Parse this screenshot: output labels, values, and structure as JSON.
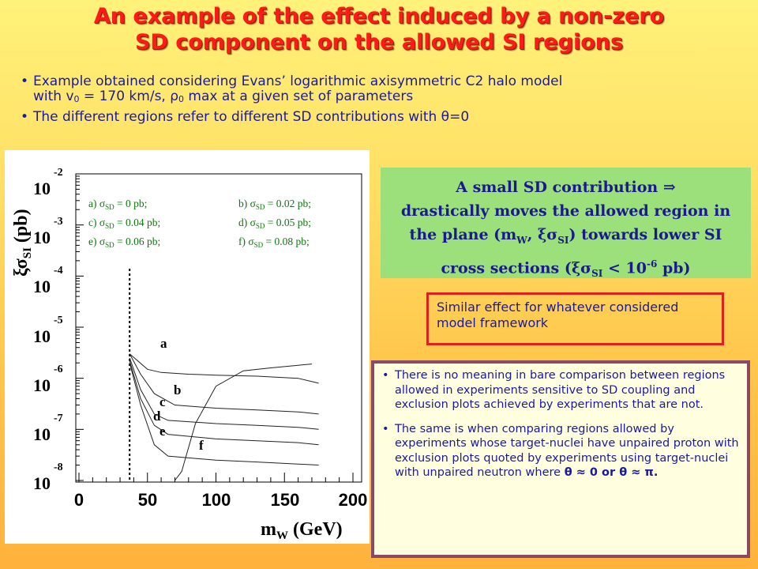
{
  "title": {
    "line1": "An example of the effect induced by a non-zero",
    "line2": "SD component on the allowed SI regions"
  },
  "bullets": {
    "b1_part1": "Example obtained considering Evans’ logarithmic axisymmetric C2 halo model",
    "b1_part2": "with v",
    "b1_sub": "0",
    "b1_part3": " = 170 km/s, ρ",
    "b1_sub2": "0",
    "b1_part4": " max at a given set of parameters",
    "b2": "The different regions refer to different SD contributions with θ=0"
  },
  "figure": {
    "ylabel": "ξσ",
    "ylabel_sub": "SI",
    "ylabel_unit": " (pb)",
    "xlabel": "m",
    "xlabel_sub": "W",
    "xlabel_unit": " (GeV)",
    "y_ticks": [
      {
        "base": "10",
        "exp": "-2"
      },
      {
        "base": "10",
        "exp": "-3"
      },
      {
        "base": "10",
        "exp": "-4"
      },
      {
        "base": "10",
        "exp": "-5"
      },
      {
        "base": "10",
        "exp": "-6"
      },
      {
        "base": "10",
        "exp": "-7"
      },
      {
        "base": "10",
        "exp": "-8"
      }
    ],
    "x_ticks": [
      "0",
      "50",
      "100",
      "150",
      "200"
    ],
    "legend": [
      {
        "pre": "a) σ",
        "sub": "SD",
        "post": " = 0 pb;"
      },
      {
        "pre": "b) σ",
        "sub": "SD",
        "post": " = 0.02 pb;"
      },
      {
        "pre": "c) σ",
        "sub": "SD",
        "post": " = 0.04 pb;"
      },
      {
        "pre": "d) σ",
        "sub": "SD",
        "post": " = 0.05 pb;"
      },
      {
        "pre": "e) σ",
        "sub": "SD",
        "post": " = 0.06 pb;"
      },
      {
        "pre": "f)  σ",
        "sub": "SD",
        "post": " = 0.08 pb;"
      }
    ],
    "curve_labels": [
      "a",
      "b",
      "c",
      "d",
      "e",
      "f"
    ]
  },
  "chart_data": {
    "type": "line",
    "x_axis": {
      "range": [
        0,
        200
      ],
      "scale": "linear"
    },
    "y_axis": {
      "range": [
        1e-08,
        0.01
      ],
      "scale": "log"
    },
    "cut_line_x": 37,
    "series": [
      {
        "name": "a",
        "x": [
          37,
          50,
          60,
          80,
          100,
          130,
          160,
          175
        ],
        "y": [
          3e-06,
          1.5e-06,
          1.3e-06,
          1.2e-06,
          1.15e-06,
          1.1e-06,
          1e-06,
          8e-07
        ]
      },
      {
        "name": "b",
        "x": [
          37,
          45,
          55,
          70,
          100,
          130,
          160,
          175
        ],
        "y": [
          3e-06,
          1.2e-06,
          5e-07,
          3e-07,
          2.6e-07,
          2.4e-07,
          2.2e-07,
          2e-07
        ]
      },
      {
        "name": "c",
        "x": [
          37,
          45,
          55,
          65,
          100,
          130,
          160,
          175
        ],
        "y": [
          2.5e-06,
          6e-07,
          2e-07,
          1.5e-07,
          1.3e-07,
          1.2e-07,
          1.1e-07,
          1e-07
        ]
      },
      {
        "name": "d",
        "x": [
          37,
          45,
          55,
          65,
          100,
          130,
          160,
          175
        ],
        "y": [
          2.2e-06,
          4e-07,
          1.2e-07,
          8e-08,
          6.5e-08,
          6e-08,
          5.5e-08,
          5e-08
        ]
      },
      {
        "name": "e",
        "x": [
          37,
          45,
          55,
          65,
          100,
          130,
          160,
          175
        ],
        "y": [
          2e-06,
          3e-07,
          5e-08,
          3e-08,
          2.5e-08,
          2.3e-08,
          2.1e-08,
          2e-08
        ]
      },
      {
        "name": "f",
        "x": [
          70,
          75,
          85,
          100,
          120,
          140,
          160,
          170
        ],
        "y": [
          1e-08,
          1.5e-08,
          1.3e-07,
          7e-07,
          1.4e-06,
          1.6e-06,
          1.8e-06,
          1.9e-06
        ]
      }
    ]
  },
  "greenbox": {
    "line1": "A small SD contribution ⇒",
    "line2": "drastically moves the allowed region in",
    "line3a": "the plane (m",
    "line3_sub1": "W",
    "line3b": ", ξσ",
    "line3_sub2": "SI",
    "line3c": ") towards lower SI",
    "line4a": "cross sections (ξσ",
    "line4_sub": "SI",
    "line4b": " < 10",
    "line4_sup": "-6",
    "line4c": " pb)"
  },
  "redbox": {
    "text": "Similar effect for whatever considered model framework"
  },
  "purplebox": {
    "p1": "There is no meaning in bare comparison between regions allowed in experiments sensitive to SD coupling and exclusion plots achieved by experiments that are not.",
    "p2_main": "The same is when comparing regions allowed by experiments whose target-nuclei have unpaired proton with exclusion plots quoted by experiments using target-nuclei with unpaired neutron where",
    "p2_math": "θ ≈ 0 or θ ≈ π."
  }
}
